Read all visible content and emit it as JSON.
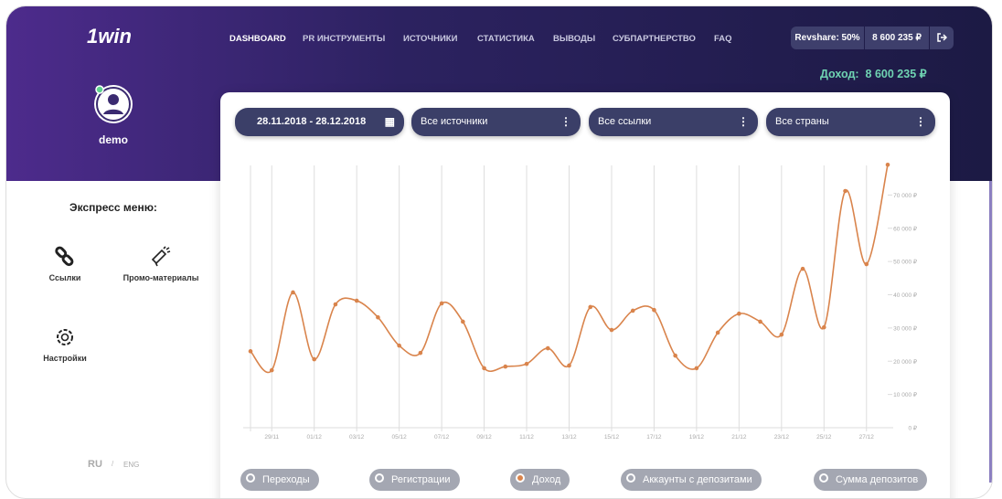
{
  "header": {
    "logo": "1win",
    "nav": [
      "DASHBOARD",
      "PR ИНСТРУМЕНТЫ",
      "ИСТОЧНИКИ",
      "СТАТИСТИКА",
      "ВЫВОДЫ",
      "СУБПАРТНЕРСТВО",
      "FAQ"
    ],
    "revshare": "Revshare: 50%",
    "balance": "8 600 235 ₽",
    "income_label": "Доход:",
    "income_value": "8 600 235 ₽"
  },
  "profile": {
    "username": "demo"
  },
  "express_menu": {
    "title": "Экспресс меню:",
    "items": [
      "Ссылки",
      "Промо-материалы",
      "Настройки"
    ]
  },
  "languages": [
    "RU",
    "ENG"
  ],
  "filters": [
    "28.11.2018 - 28.12.2018",
    "Все источники",
    "Все ссылки",
    "Все страны"
  ],
  "metrics": [
    "Переходы",
    "Регистрации",
    "Доход",
    "Аккаунты с депозитами",
    "Сумма депозитов"
  ],
  "selected_metric": 2,
  "chart_data": {
    "type": "line",
    "color": "#d9844c",
    "categories": [
      null,
      "29/11",
      null,
      "01/12",
      null,
      "03/12",
      null,
      "05/12",
      null,
      "07/12",
      null,
      "09/12",
      null,
      "11/12",
      null,
      "13/12",
      null,
      "15/12",
      null,
      "17/12",
      null,
      "19/12",
      null,
      "21/12",
      null,
      "23/12",
      null,
      "25/12",
      null,
      "27/12",
      null
    ],
    "values": [
      23000,
      17300,
      40700,
      20600,
      37100,
      38200,
      33200,
      24700,
      22500,
      37400,
      31900,
      17900,
      18400,
      19200,
      23900,
      18700,
      36300,
      29400,
      35200,
      35400,
      21700,
      17900,
      28600,
      34300,
      31900,
      28000,
      47800,
      30200,
      71200,
      49200,
      79100
    ],
    "ylim": [
      0,
      80000
    ],
    "yticks": [
      {
        "value": 0,
        "label": "0 ₽"
      },
      {
        "value": 10000,
        "label": "10 000 ₽"
      },
      {
        "value": 20000,
        "label": "20 000 ₽"
      },
      {
        "value": 30000,
        "label": "30 000 ₽"
      },
      {
        "value": 40000,
        "label": "40 000 ₽"
      },
      {
        "value": 50000,
        "label": "50 000 ₽"
      },
      {
        "value": 60000,
        "label": "60 000 ₽"
      },
      {
        "value": 70000,
        "label": "70 000 ₽"
      }
    ]
  }
}
